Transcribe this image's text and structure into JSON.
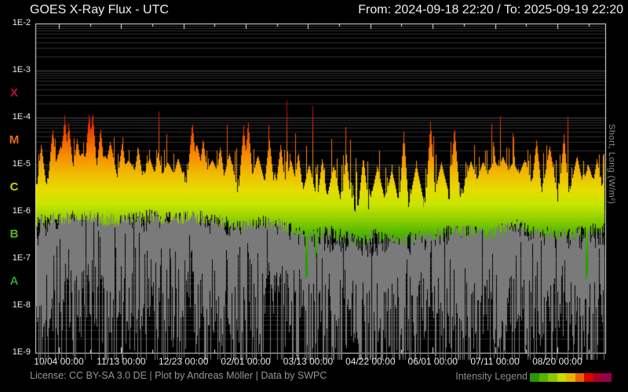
{
  "header": {
    "title": "GOES X-Ray Flux - UTC",
    "time_range": "From: 2024-09-18 22:20  /  To: 2025-09-19 22:20"
  },
  "y_axis": {
    "tick_labels": [
      "1E-2",
      "1E-3",
      "1E-4",
      "1E-5",
      "1E-6",
      "1E-7",
      "1E-8",
      "1E-9"
    ],
    "unit_label": "Short, Long (W/m²)"
  },
  "class_bands": [
    {
      "label": "X",
      "color": "#b4143c",
      "log_center": -3.5
    },
    {
      "label": "M",
      "color": "#e06c14",
      "log_center": -4.5
    },
    {
      "label": "C",
      "color": "#ccd200",
      "log_center": -5.5
    },
    {
      "label": "B",
      "color": "#5ab41e",
      "log_center": -6.5
    },
    {
      "label": "A",
      "color": "#2da02d",
      "log_center": -7.5
    }
  ],
  "x_axis": {
    "ticks": [
      {
        "label": "10/04 00:00",
        "pos": 0.0413
      },
      {
        "label": "11/13 00:00",
        "pos": 0.1506
      },
      {
        "label": "12/23 00:00",
        "pos": 0.26
      },
      {
        "label": "02/01 00:00",
        "pos": 0.3693
      },
      {
        "label": "03/13 00:00",
        "pos": 0.4786
      },
      {
        "label": "04/22 00:00",
        "pos": 0.5879
      },
      {
        "label": "06/01 00:00",
        "pos": 0.6973
      },
      {
        "label": "07/11 00:00",
        "pos": 0.8066
      },
      {
        "label": "08/20 00:00",
        "pos": 0.9159
      }
    ]
  },
  "footer": {
    "license": "License: CC BY-SA 3.0 DE | Plot by Andreas Möller | Data by SWPC",
    "legend_label": "Intensity Legend",
    "legend_colors": [
      "#2d9600",
      "#55b400",
      "#8cc800",
      "#c8dc00",
      "#e6b400",
      "#e66400",
      "#dc0000",
      "#a80028",
      "#96004b"
    ]
  },
  "chart_data": {
    "type": "area",
    "title": "GOES X-Ray Flux - UTC",
    "x_start": "2024-09-18 22:20",
    "x_end": "2025-09-19 22:20",
    "y_scale": "log10",
    "ylim_log10": [
      -9,
      -2
    ],
    "grid": "horizontal log major+minor",
    "background": "#000000",
    "frame_color": "#e8e8e8",
    "grid_minor_color": "#2c2c2c",
    "grid_major_color": "#4e4e4e",
    "noise_seed": 1337,
    "intensity_gradient_stops": [
      [
        0.0,
        "#6e0032"
      ],
      [
        0.2,
        "#a00028"
      ],
      [
        0.265,
        "#d80010"
      ],
      [
        0.33,
        "#ee4600"
      ],
      [
        0.4,
        "#f88c00"
      ],
      [
        0.46,
        "#f0be00"
      ],
      [
        0.505,
        "#e6dc00"
      ],
      [
        0.55,
        "#c8e600"
      ],
      [
        0.59,
        "#96d200"
      ],
      [
        0.64,
        "#50b400"
      ],
      [
        0.71,
        "#28a000"
      ],
      [
        1.0,
        "#189600"
      ]
    ],
    "series": [
      {
        "name": "Long",
        "render": "intensity-gradient-columns",
        "envelope_top": [
          [
            0,
            -5.55
          ],
          [
            0.03,
            -5.3
          ],
          [
            0.06,
            -5.15
          ],
          [
            0.09,
            -5.1
          ],
          [
            0.12,
            -5.35
          ],
          [
            0.15,
            -5.25
          ],
          [
            0.18,
            -5.35
          ],
          [
            0.21,
            -5.3
          ],
          [
            0.24,
            -5.25
          ],
          [
            0.27,
            -5.2
          ],
          [
            0.3,
            -5.3
          ],
          [
            0.33,
            -5.4
          ],
          [
            0.36,
            -5.45
          ],
          [
            0.39,
            -5.35
          ],
          [
            0.42,
            -5.45
          ],
          [
            0.45,
            -5.55
          ],
          [
            0.48,
            -5.65
          ],
          [
            0.52,
            -5.75
          ],
          [
            0.56,
            -5.85
          ],
          [
            0.6,
            -5.7
          ],
          [
            0.64,
            -5.85
          ],
          [
            0.68,
            -5.75
          ],
          [
            0.72,
            -5.6
          ],
          [
            0.76,
            -5.45
          ],
          [
            0.8,
            -5.3
          ],
          [
            0.84,
            -5.2
          ],
          [
            0.88,
            -5.45
          ],
          [
            0.92,
            -5.6
          ],
          [
            0.96,
            -5.55
          ],
          [
            1,
            -5.45
          ]
        ],
        "envelope_base": [
          [
            0,
            -6.05
          ],
          [
            0.04,
            -6.0
          ],
          [
            0.08,
            -5.95
          ],
          [
            0.12,
            -6.05
          ],
          [
            0.16,
            -6.0
          ],
          [
            0.2,
            -5.95
          ],
          [
            0.24,
            -6.0
          ],
          [
            0.28,
            -5.95
          ],
          [
            0.32,
            -6.05
          ],
          [
            0.36,
            -6.15
          ],
          [
            0.4,
            -6.05
          ],
          [
            0.44,
            -6.2
          ],
          [
            0.48,
            -6.35
          ],
          [
            0.52,
            -6.3
          ],
          [
            0.56,
            -6.45
          ],
          [
            0.6,
            -6.35
          ],
          [
            0.64,
            -6.45
          ],
          [
            0.68,
            -6.4
          ],
          [
            0.72,
            -6.3
          ],
          [
            0.76,
            -6.25
          ],
          [
            0.8,
            -6.35
          ],
          [
            0.84,
            -6.1
          ],
          [
            0.88,
            -6.25
          ],
          [
            0.92,
            -6.35
          ],
          [
            0.96,
            -6.3
          ],
          [
            1,
            -6.2
          ]
        ],
        "flare_spikes": [
          [
            0.01,
            -4.55,
            2
          ],
          [
            0.03,
            -4.22,
            2
          ],
          [
            0.044,
            -4.6,
            4
          ],
          [
            0.051,
            -3.95,
            2
          ],
          [
            0.058,
            -4.12,
            2
          ],
          [
            0.073,
            -4.45,
            2
          ],
          [
            0.082,
            -4.75,
            5
          ],
          [
            0.094,
            -3.88,
            2
          ],
          [
            0.1,
            -3.85,
            2
          ],
          [
            0.114,
            -4.2,
            2
          ],
          [
            0.122,
            -4.8,
            5
          ],
          [
            0.131,
            -4.5,
            3
          ],
          [
            0.152,
            -4.52,
            2
          ],
          [
            0.163,
            -4.9,
            5
          ],
          [
            0.18,
            -4.62,
            2
          ],
          [
            0.2,
            -4.85,
            3
          ],
          [
            0.215,
            -4.75,
            2
          ],
          [
            0.232,
            -4.95,
            3
          ],
          [
            0.25,
            -4.85,
            2
          ],
          [
            0.275,
            -4.08,
            2
          ],
          [
            0.283,
            -4.55,
            3
          ],
          [
            0.294,
            -4.45,
            2
          ],
          [
            0.31,
            -4.9,
            4
          ],
          [
            0.324,
            -4.6,
            2
          ],
          [
            0.34,
            -4.75,
            3
          ],
          [
            0.365,
            -4.17,
            2
          ],
          [
            0.373,
            -4.05,
            2
          ],
          [
            0.39,
            -4.8,
            3
          ],
          [
            0.41,
            -4.42,
            2
          ],
          [
            0.43,
            -4.55,
            2
          ],
          [
            0.448,
            -4.9,
            3
          ],
          [
            0.461,
            -4.72,
            2
          ],
          [
            0.48,
            -5.0,
            3
          ],
          [
            0.503,
            -4.85,
            2
          ],
          [
            0.523,
            -5.0,
            3
          ],
          [
            0.545,
            -4.72,
            2
          ],
          [
            0.575,
            -4.82,
            2
          ],
          [
            0.6,
            -5.05,
            3
          ],
          [
            0.625,
            -5.1,
            3
          ],
          [
            0.646,
            -4.3,
            2
          ],
          [
            0.668,
            -5.0,
            3
          ],
          [
            0.693,
            -4.05,
            2
          ],
          [
            0.712,
            -4.95,
            3
          ],
          [
            0.735,
            -4.18,
            2
          ],
          [
            0.764,
            -4.92,
            3
          ],
          [
            0.785,
            -4.95,
            3
          ],
          [
            0.805,
            -4.9,
            4
          ],
          [
            0.82,
            -4.82,
            3
          ],
          [
            0.838,
            -4.95,
            3
          ],
          [
            0.858,
            -4.9,
            3
          ],
          [
            0.879,
            -4.45,
            2
          ],
          [
            0.902,
            -4.6,
            3
          ],
          [
            0.927,
            -4.35,
            2
          ],
          [
            0.95,
            -4.8,
            3
          ],
          [
            0.97,
            -5.0,
            3
          ],
          [
            0.985,
            -4.88,
            2
          ]
        ],
        "dropouts": [
          [
            0.475,
            -7.55
          ],
          [
            0.492,
            -7.05
          ],
          [
            0.967,
            -7.5
          ]
        ]
      },
      {
        "name": "Short",
        "render": "gray-columns",
        "color": "#7a7a7a",
        "envelope_top": [
          [
            0,
            -6.6
          ],
          [
            0.03,
            -6.2
          ],
          [
            0.06,
            -6.0
          ],
          [
            0.1,
            -6.15
          ],
          [
            0.14,
            -6.0
          ],
          [
            0.18,
            -6.25
          ],
          [
            0.22,
            -6.1
          ],
          [
            0.26,
            -6.0
          ],
          [
            0.3,
            -6.2
          ],
          [
            0.34,
            -6.35
          ],
          [
            0.38,
            -6.15
          ],
          [
            0.42,
            -6.3
          ],
          [
            0.46,
            -6.5
          ],
          [
            0.5,
            -6.7
          ],
          [
            0.54,
            -6.6
          ],
          [
            0.58,
            -6.75
          ],
          [
            0.62,
            -6.65
          ],
          [
            0.66,
            -6.7
          ],
          [
            0.7,
            -6.55
          ],
          [
            0.74,
            -6.4
          ],
          [
            0.78,
            -6.25
          ],
          [
            0.82,
            -6.1
          ],
          [
            0.86,
            -6.35
          ],
          [
            0.9,
            -6.5
          ],
          [
            0.94,
            -6.6
          ],
          [
            0.98,
            -6.55
          ],
          [
            1,
            -6.5
          ]
        ],
        "span_env": [
          [
            0,
            1.7
          ],
          [
            0.1,
            1.9
          ],
          [
            0.2,
            1.8
          ],
          [
            0.3,
            2.0
          ],
          [
            0.4,
            1.8
          ],
          [
            0.5,
            1.6
          ],
          [
            0.6,
            1.7
          ],
          [
            0.7,
            1.8
          ],
          [
            0.8,
            1.9
          ],
          [
            0.9,
            1.7
          ],
          [
            1,
            1.6
          ]
        ]
      }
    ]
  }
}
